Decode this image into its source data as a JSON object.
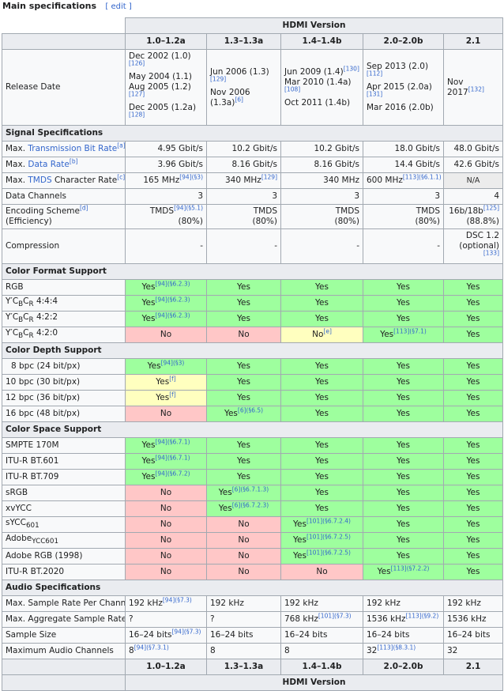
{
  "caption": {
    "title": "Main specifications",
    "edit": "[ edit ]"
  },
  "header": {
    "group": "HDMI Version",
    "versions": [
      "1.0–1.2a",
      "1.3–1.3a",
      "1.4–1.4b",
      "2.0–2.0b",
      "2.1"
    ]
  },
  "release": {
    "label": "Release Date",
    "v1": [
      {
        "t": "Dec 2002 (1.0)",
        "r": "[126]"
      },
      {
        "t": "May 2004 (1.1)",
        "r": ""
      },
      {
        "t": "Aug 2005 (1.2)",
        "r": "[127]"
      },
      {
        "t": "Dec 2005 (1.2a)",
        "r": "[128]"
      }
    ],
    "v2": [
      {
        "t": "Jun 2006 (1.3)",
        "r": "[129]"
      },
      {
        "t": "Nov 2006 (1.3a)",
        "r": "[6]"
      }
    ],
    "v3": [
      {
        "t": "Jun 2009 (1.4)",
        "r": "[130]"
      },
      {
        "t": "Mar 2010 (1.4a)",
        "r": "[108]"
      },
      {
        "t": "Oct 2011 (1.4b)",
        "r": ""
      }
    ],
    "v4": [
      {
        "t": "Sep 2013 (2.0)",
        "r": "[112]"
      },
      {
        "t": "Apr 2015 (2.0a)",
        "r": "[131]"
      },
      {
        "t": "Mar 2016 (2.0b)",
        "r": ""
      }
    ],
    "v5": [
      {
        "t": "Nov 2017",
        "r": "[132]"
      }
    ]
  },
  "sections": {
    "signal": "Signal Specifications",
    "color_format": "Color Format Support",
    "color_depth": "Color Depth Support",
    "color_space": "Color Space Support",
    "audio": "Audio Specifications"
  },
  "signal": {
    "tbr": {
      "pre": "Max. ",
      "link": "Transmission Bit Rate",
      "note": "[a]",
      "vals": [
        "4.95 Gbit/s",
        "10.2 Gbit/s",
        "10.2 Gbit/s",
        "18.0 Gbit/s",
        "48.0 Gbit/s"
      ]
    },
    "dr": {
      "pre": "Max. ",
      "link": "Data Rate",
      "note": "[b]",
      "vals": [
        "3.96 Gbit/s",
        "8.16 Gbit/s",
        "8.16 Gbit/s",
        "14.4 Gbit/s",
        "42.6 Gbit/s"
      ]
    },
    "tmds": {
      "pre": "Max. ",
      "link": "TMDS",
      "post": " Character Rate",
      "note": "[c]",
      "vals": [
        {
          "t": "165 MHz",
          "r": "[94]",
          "s": "(§3)"
        },
        {
          "t": "340 MHz",
          "r": "[129]",
          "s": ""
        },
        {
          "t": "340 MHz",
          "r": "",
          "s": ""
        },
        {
          "t": "600 MHz",
          "r": "[113]",
          "s": "(§6.1.1)"
        },
        {
          "t": "N/A",
          "r": "",
          "s": ""
        }
      ]
    },
    "channels": {
      "label": "Data Channels",
      "vals": [
        "3",
        "3",
        "3",
        "3",
        "4"
      ]
    },
    "encoding": {
      "label": "Encoding Scheme",
      "note": "[d]",
      "label2": "(Efficiency)",
      "vals": [
        {
          "t": "TMDS",
          "r": "[94]",
          "s": "(§5.1)",
          "e": "(80%)"
        },
        {
          "t": "TMDS",
          "r": "",
          "s": "",
          "e": "(80%)"
        },
        {
          "t": "TMDS",
          "r": "",
          "s": "",
          "e": "(80%)"
        },
        {
          "t": "TMDS",
          "r": "",
          "s": "",
          "e": "(80%)"
        },
        {
          "t": "16b/18b",
          "r": "[125]",
          "s": "",
          "e": "(88.8%)"
        }
      ]
    },
    "compression": {
      "label": "Compression",
      "vals": [
        "-",
        "-",
        "-",
        "-"
      ],
      "last": "DSC 1.2",
      "last2": "(optional)",
      "last_ref": "[133]"
    }
  },
  "color_format": [
    {
      "label": "RGB",
      "cells": [
        {
          "v": "Yes",
          "r": "[94]",
          "s": "(§6.2.3)",
          "k": "yes"
        },
        {
          "v": "Yes",
          "k": "yes"
        },
        {
          "v": "Yes",
          "k": "yes"
        },
        {
          "v": "Yes",
          "k": "yes"
        },
        {
          "v": "Yes",
          "k": "yes"
        }
      ]
    },
    {
      "label": "Y′CBCR 4:4:4",
      "cells": [
        {
          "v": "Yes",
          "r": "[94]",
          "s": "(§6.2.3)",
          "k": "yes"
        },
        {
          "v": "Yes",
          "k": "yes"
        },
        {
          "v": "Yes",
          "k": "yes"
        },
        {
          "v": "Yes",
          "k": "yes"
        },
        {
          "v": "Yes",
          "k": "yes"
        }
      ]
    },
    {
      "label": "Y′CBCR 4:2:2",
      "cells": [
        {
          "v": "Yes",
          "r": "[94]",
          "s": "(§6.2.3)",
          "k": "yes"
        },
        {
          "v": "Yes",
          "k": "yes"
        },
        {
          "v": "Yes",
          "k": "yes"
        },
        {
          "v": "Yes",
          "k": "yes"
        },
        {
          "v": "Yes",
          "k": "yes"
        }
      ]
    },
    {
      "label": "Y′CBCR 4:2:0",
      "cells": [
        {
          "v": "No",
          "k": "no"
        },
        {
          "v": "No",
          "k": "no"
        },
        {
          "v": "No",
          "r": "[e]",
          "k": "part"
        },
        {
          "v": "Yes",
          "r": "[113]",
          "s": "(§7.1)",
          "k": "yes"
        },
        {
          "v": "Yes",
          "k": "yes"
        }
      ]
    }
  ],
  "color_depth": [
    {
      "label": "8 bpc (24 bit/px)",
      "cells": [
        {
          "v": "Yes",
          "r": "[94]",
          "s": "(§3)",
          "k": "yes"
        },
        {
          "v": "Yes",
          "k": "yes"
        },
        {
          "v": "Yes",
          "k": "yes"
        },
        {
          "v": "Yes",
          "k": "yes"
        },
        {
          "v": "Yes",
          "k": "yes"
        }
      ]
    },
    {
      "label": "10 bpc (30 bit/px)",
      "cells": [
        {
          "v": "Yes",
          "r": "[f]",
          "k": "part"
        },
        {
          "v": "Yes",
          "k": "yes"
        },
        {
          "v": "Yes",
          "k": "yes"
        },
        {
          "v": "Yes",
          "k": "yes"
        },
        {
          "v": "Yes",
          "k": "yes"
        }
      ]
    },
    {
      "label": "12 bpc (36 bit/px)",
      "cells": [
        {
          "v": "Yes",
          "r": "[f]",
          "k": "part"
        },
        {
          "v": "Yes",
          "k": "yes"
        },
        {
          "v": "Yes",
          "k": "yes"
        },
        {
          "v": "Yes",
          "k": "yes"
        },
        {
          "v": "Yes",
          "k": "yes"
        }
      ]
    },
    {
      "label": "16 bpc (48 bit/px)",
      "cells": [
        {
          "v": "No",
          "k": "no"
        },
        {
          "v": "Yes",
          "r": "[6]",
          "s": "(§6.5)",
          "k": "yes"
        },
        {
          "v": "Yes",
          "k": "yes"
        },
        {
          "v": "Yes",
          "k": "yes"
        },
        {
          "v": "Yes",
          "k": "yes"
        }
      ]
    }
  ],
  "color_space": [
    {
      "label": "SMPTE 170M",
      "cells": [
        {
          "v": "Yes",
          "r": "[94]",
          "s": "(§6.7.1)",
          "k": "yes"
        },
        {
          "v": "Yes",
          "k": "yes"
        },
        {
          "v": "Yes",
          "k": "yes"
        },
        {
          "v": "Yes",
          "k": "yes"
        },
        {
          "v": "Yes",
          "k": "yes"
        }
      ]
    },
    {
      "label": "ITU-R BT.601",
      "cells": [
        {
          "v": "Yes",
          "r": "[94]",
          "s": "(§6.7.1)",
          "k": "yes"
        },
        {
          "v": "Yes",
          "k": "yes"
        },
        {
          "v": "Yes",
          "k": "yes"
        },
        {
          "v": "Yes",
          "k": "yes"
        },
        {
          "v": "Yes",
          "k": "yes"
        }
      ]
    },
    {
      "label": "ITU-R BT.709",
      "cells": [
        {
          "v": "Yes",
          "r": "[94]",
          "s": "(§6.7.2)",
          "k": "yes"
        },
        {
          "v": "Yes",
          "k": "yes"
        },
        {
          "v": "Yes",
          "k": "yes"
        },
        {
          "v": "Yes",
          "k": "yes"
        },
        {
          "v": "Yes",
          "k": "yes"
        }
      ]
    },
    {
      "label": "sRGB",
      "cells": [
        {
          "v": "No",
          "k": "no"
        },
        {
          "v": "Yes",
          "r": "[6]",
          "s": "(§6.7.1.3)",
          "k": "yes"
        },
        {
          "v": "Yes",
          "k": "yes"
        },
        {
          "v": "Yes",
          "k": "yes"
        },
        {
          "v": "Yes",
          "k": "yes"
        }
      ]
    },
    {
      "label": "xvYCC",
      "cells": [
        {
          "v": "No",
          "k": "no"
        },
        {
          "v": "Yes",
          "r": "[6]",
          "s": "(§6.7.2.3)",
          "k": "yes"
        },
        {
          "v": "Yes",
          "k": "yes"
        },
        {
          "v": "Yes",
          "k": "yes"
        },
        {
          "v": "Yes",
          "k": "yes"
        }
      ]
    },
    {
      "label": "sYCC601",
      "cells": [
        {
          "v": "No",
          "k": "no"
        },
        {
          "v": "No",
          "k": "no"
        },
        {
          "v": "Yes",
          "r": "[101]",
          "s": "(§6.7.2.4)",
          "k": "yes"
        },
        {
          "v": "Yes",
          "k": "yes"
        },
        {
          "v": "Yes",
          "k": "yes"
        }
      ]
    },
    {
      "label": "AdobeYCC601",
      "cells": [
        {
          "v": "No",
          "k": "no"
        },
        {
          "v": "No",
          "k": "no"
        },
        {
          "v": "Yes",
          "r": "[101]",
          "s": "(§6.7.2.5)",
          "k": "yes"
        },
        {
          "v": "Yes",
          "k": "yes"
        },
        {
          "v": "Yes",
          "k": "yes"
        }
      ]
    },
    {
      "label": "Adobe RGB (1998)",
      "cells": [
        {
          "v": "No",
          "k": "no"
        },
        {
          "v": "No",
          "k": "no"
        },
        {
          "v": "Yes",
          "r": "[101]",
          "s": "(§6.7.2.5)",
          "k": "yes"
        },
        {
          "v": "Yes",
          "k": "yes"
        },
        {
          "v": "Yes",
          "k": "yes"
        }
      ]
    },
    {
      "label": "ITU-R BT.2020",
      "cells": [
        {
          "v": "No",
          "k": "no"
        },
        {
          "v": "No",
          "k": "no"
        },
        {
          "v": "No",
          "k": "no"
        },
        {
          "v": "Yes",
          "r": "[113]",
          "s": "(§7.2.2)",
          "k": "yes"
        },
        {
          "v": "Yes",
          "k": "yes"
        }
      ]
    }
  ],
  "audio": [
    {
      "label": "Max. Sample Rate Per Channel",
      "cells": [
        {
          "t": "192 kHz",
          "r": "[94]",
          "s": "(§7.3)"
        },
        {
          "t": "192 kHz"
        },
        {
          "t": "192 kHz"
        },
        {
          "t": "192 kHz"
        },
        {
          "t": "192 kHz"
        }
      ]
    },
    {
      "label": "Max. Aggregate Sample Rate",
      "cells": [
        {
          "t": "?"
        },
        {
          "t": "?"
        },
        {
          "t": "768 kHz",
          "r": "[101]",
          "s": "(§7.3)"
        },
        {
          "t": "1536 kHz",
          "r": "[113]",
          "s": "(§9.2)"
        },
        {
          "t": "1536 kHz"
        }
      ]
    },
    {
      "label": "Sample Size",
      "cells": [
        {
          "t": "16–24 bits",
          "r": "[94]",
          "s": "(§7.3)"
        },
        {
          "t": "16–24 bits"
        },
        {
          "t": "16–24 bits"
        },
        {
          "t": "16–24 bits"
        },
        {
          "t": "16–24 bits"
        }
      ]
    },
    {
      "label": "Maximum Audio Channels",
      "cells": [
        {
          "t": "8",
          "r": "[94]",
          "s": "(§7.3.1)"
        },
        {
          "t": "8"
        },
        {
          "t": "8"
        },
        {
          "t": "32",
          "r": "[113]",
          "s": "(§8.3.1)"
        },
        {
          "t": "32"
        }
      ]
    }
  ]
}
